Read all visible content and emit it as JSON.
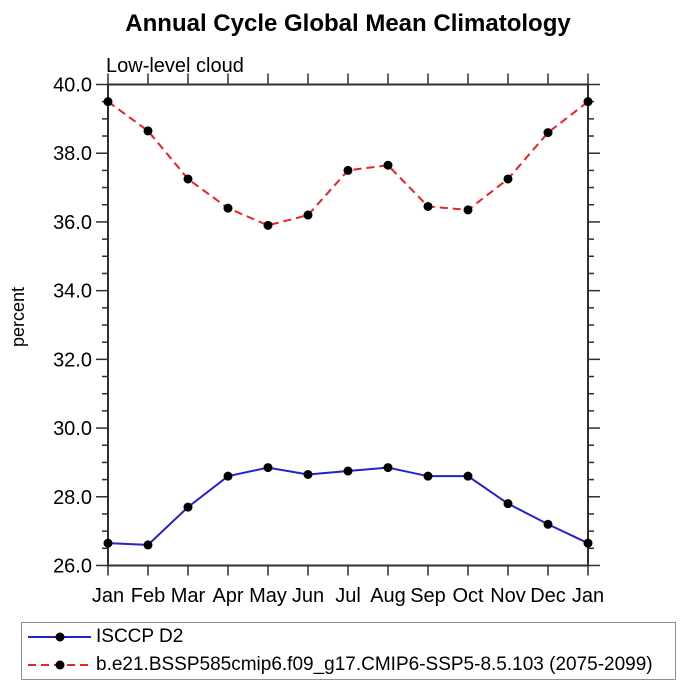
{
  "title": "Annual Cycle Global Mean Climatology",
  "subtitle": "Low-level cloud",
  "chart_data": {
    "type": "line",
    "title": "Annual Cycle Global Mean Climatology",
    "subtitle": "Low-level cloud",
    "xlabel": "",
    "ylabel": "percent",
    "categories": [
      "Jan",
      "Feb",
      "Mar",
      "Apr",
      "May",
      "Jun",
      "Jul",
      "Aug",
      "Sep",
      "Oct",
      "Nov",
      "Dec",
      "Jan"
    ],
    "series": [
      {
        "name": "ISCCP D2",
        "color": "#2222cc",
        "line_style": "solid",
        "marker": "filled-circle",
        "marker_color": "#000000",
        "values": [
          26.65,
          26.6,
          27.7,
          28.6,
          28.85,
          28.65,
          28.75,
          28.85,
          28.6,
          28.6,
          27.8,
          27.2,
          26.65
        ]
      },
      {
        "name": "b.e21.BSSP585cmip6.f09_g17.CMIP6-SSP5-8.5.103 (2075-2099)",
        "color": "#ee2222",
        "line_style": "dashed",
        "marker": "filled-circle",
        "marker_color": "#000000",
        "values": [
          39.5,
          38.65,
          37.25,
          36.4,
          35.9,
          36.2,
          37.5,
          37.65,
          36.45,
          36.35,
          37.25,
          38.6,
          39.5
        ]
      }
    ],
    "ylim": [
      26.0,
      40.0
    ],
    "y_major_step": 2.0,
    "y_minor_step": 0.5,
    "y_tick_labels": [
      "26.0",
      "28.0",
      "30.0",
      "32.0",
      "34.0",
      "36.0",
      "38.0",
      "40.0"
    ],
    "grid": "off",
    "legend_position": "bottom-left-box"
  },
  "colors": {
    "axis": "#2f2f2f",
    "text": "#000000",
    "legend_border": "#8f8f8f",
    "background": "#ffffff",
    "series_blue": "#2222cc",
    "series_red": "#ee2222",
    "marker": "#000000"
  }
}
